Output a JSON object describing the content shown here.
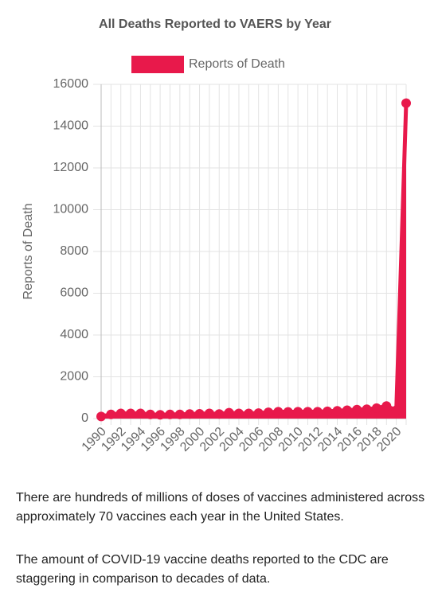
{
  "chart_data": {
    "type": "line",
    "title": "All Deaths Reported to VAERS by Year",
    "y_label": "Reports of Death",
    "categories": [
      "1990",
      null,
      "1992",
      null,
      "1994",
      null,
      "1996",
      null,
      "1998",
      null,
      "2000",
      null,
      "2002",
      null,
      "2004",
      null,
      "2006",
      null,
      "2008",
      null,
      "2010",
      null,
      "2012",
      null,
      "2014",
      null,
      "2016",
      null,
      "2018",
      null,
      "2020",
      null
    ],
    "series": [
      {
        "name": "Reports of Death",
        "color": "#e8194b",
        "values": [
          100,
          200,
          250,
          250,
          250,
          200,
          180,
          200,
          200,
          220,
          230,
          250,
          220,
          280,
          250,
          250,
          260,
          300,
          330,
          320,
          330,
          330,
          330,
          350,
          370,
          400,
          430,
          450,
          500,
          600,
          400,
          15100
        ]
      }
    ],
    "ylim": [
      0,
      16000
    ],
    "yticks": [
      0,
      2000,
      4000,
      6000,
      8000,
      10000,
      12000,
      14000,
      16000
    ],
    "grid": true,
    "fill": true,
    "legend": "top"
  },
  "text": {
    "paragraphs": [
      "There are hundreds of millions of doses of vaccines administered across approximately 70 vaccines each year in the United States.",
      "The amount of COVID-19 vaccine deaths reported to the CDC are staggering in comparison to decades of data."
    ]
  }
}
